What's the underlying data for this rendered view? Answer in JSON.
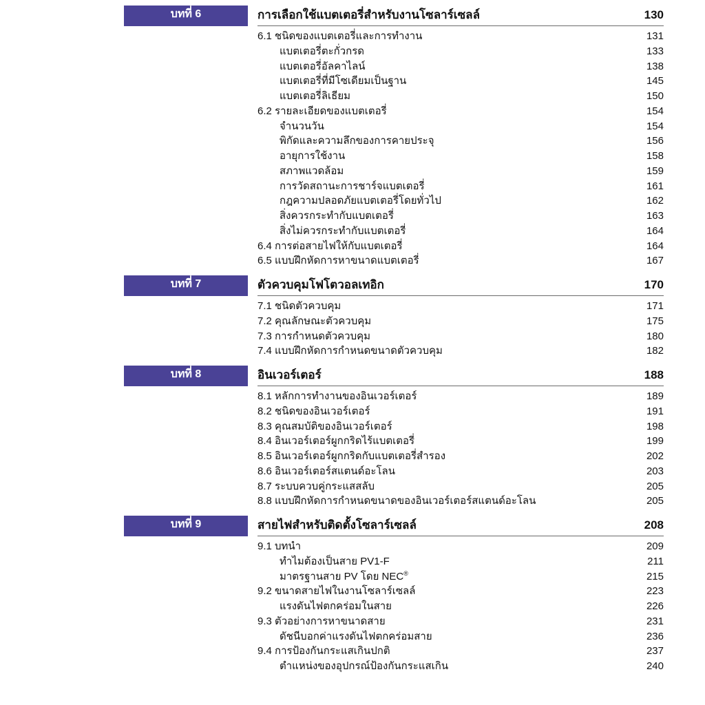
{
  "badge_bg": "#4a4296",
  "badge_fg": "#ffffff",
  "divider_color": "#6a6a6a",
  "chapters": [
    {
      "badge": "บทที่ 6",
      "title": "การเลือกใช้แบตเตอรี่สำหรับงานโซลาร์เซลล์",
      "page": "130",
      "items": [
        {
          "label": "6.1 ชนิดของแบตเตอรี่และการทำงาน",
          "page": "131",
          "indent": 0
        },
        {
          "label": "แบตเตอรี่ตะกั่วกรด",
          "page": "133",
          "indent": 1
        },
        {
          "label": "แบตเตอรี่อัลคาไลน์",
          "page": "138",
          "indent": 1
        },
        {
          "label": "แบตเตอรี่ที่มีโซเดียมเป็นฐาน",
          "page": "145",
          "indent": 1
        },
        {
          "label": "แบตเตอรี่ลิเธียม",
          "page": "150",
          "indent": 1
        },
        {
          "label": "6.2 รายละเอียดของแบตเตอรี่",
          "page": "154",
          "indent": 0
        },
        {
          "label": "จำนวนวัน",
          "page": "154",
          "indent": 1
        },
        {
          "label": "พิกัดและความลึกของการคายประจุ",
          "page": "156",
          "indent": 1
        },
        {
          "label": "อายุการใช้งาน",
          "page": "158",
          "indent": 1
        },
        {
          "label": "สภาพแวดล้อม",
          "page": "159",
          "indent": 1
        },
        {
          "label": "การวัดสถานะการชาร์จแบตเตอรี่",
          "page": "161",
          "indent": 1
        },
        {
          "label": "กฎความปลอดภัยแบตเตอรี่โดยทั่วไป",
          "page": "162",
          "indent": 1
        },
        {
          "label": "สิ่งควรกระทำกับแบตเตอรี่",
          "page": "163",
          "indent": 1
        },
        {
          "label": "สิ่งไม่ควรกระทำกับแบตเตอรี่",
          "page": "164",
          "indent": 1
        },
        {
          "label": "6.4 การต่อสายไฟให้กับแบตเตอรี่",
          "page": "164",
          "indent": 0
        },
        {
          "label": "6.5 แบบฝึกหัดการหาขนาดแบตเตอรี่",
          "page": "167",
          "indent": 0
        }
      ]
    },
    {
      "badge": "บทที่ 7",
      "title": "ตัวควบคุมโฟโตวอลเทอิก",
      "page": "170",
      "items": [
        {
          "label": "7.1 ชนิดตัวควบคุม",
          "page": "171",
          "indent": 0
        },
        {
          "label": "7.2 คุณลักษณะตัวควบคุม",
          "page": "175",
          "indent": 0
        },
        {
          "label": "7.3 การกำหนดตัวควบคุม",
          "page": "180",
          "indent": 0
        },
        {
          "label": "7.4 แบบฝึกหัดการกำหนดขนาดตัวควบคุม",
          "page": "182",
          "indent": 0
        }
      ]
    },
    {
      "badge": "บทที่ 8",
      "title": "อินเวอร์เตอร์",
      "page": "188",
      "items": [
        {
          "label": "8.1 หลักการทำงานของอินเวอร์เตอร์",
          "page": "189",
          "indent": 0
        },
        {
          "label": "8.2 ชนิดของอินเวอร์เตอร์",
          "page": "191",
          "indent": 0
        },
        {
          "label": "8.3 คุณสมบัติของอินเวอร์เตอร์",
          "page": "198",
          "indent": 0
        },
        {
          "label": "8.4 อินเวอร์เตอร์ผูกกริดไร้แบตเตอรี่",
          "page": "199",
          "indent": 0
        },
        {
          "label": "8.5 อินเวอร์เตอร์ผูกกริดกับแบตเตอรี่สำรอง",
          "page": "202",
          "indent": 0
        },
        {
          "label": "8.6 อินเวอร์เตอร์สแตนด์อะโลน",
          "page": "203",
          "indent": 0
        },
        {
          "label": "8.7 ระบบควบคู่กระแสสลับ",
          "page": "205",
          "indent": 0
        },
        {
          "label": "8.8 แบบฝึกหัดการกำหนดขนาดของอินเวอร์เตอร์สแตนด์อะโลน",
          "page": "205",
          "indent": 0
        }
      ]
    },
    {
      "badge": "บทที่ 9",
      "title": "สายไฟสำหรับติดตั้งโซลาร์เซลล์",
      "page": "208",
      "items": [
        {
          "label": "9.1 บทนำ",
          "page": "209",
          "indent": 0
        },
        {
          "label": "ทำไมต้องเป็นสาย PV1-F",
          "page": "211",
          "indent": 1
        },
        {
          "label": "มาตรฐานสาย PV โดย NEC®",
          "page": "215",
          "indent": 1,
          "reg": true
        },
        {
          "label": "9.2 ขนาดสายไฟในงานโซลาร์เซลล์",
          "page": "223",
          "indent": 0
        },
        {
          "label": "แรงดันไฟตกคร่อมในสาย",
          "page": "226",
          "indent": 1
        },
        {
          "label": "9.3 ตัวอย่างการหาขนาดสาย",
          "page": "231",
          "indent": 0
        },
        {
          "label": "ดัชนีบอกค่าแรงดันไฟตกคร่อมสาย",
          "page": "236",
          "indent": 1
        },
        {
          "label": "9.4 การป้องกันกระแสเกินปกติ",
          "page": "237",
          "indent": 0
        },
        {
          "label": "ตำแหน่งของอุปกรณ์ป้องกันกระแสเกิน",
          "page": "240",
          "indent": 1
        }
      ]
    }
  ]
}
